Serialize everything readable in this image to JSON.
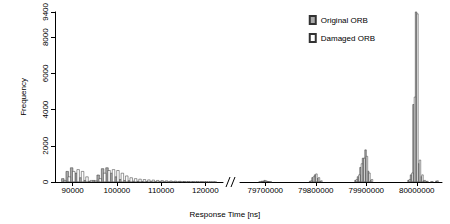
{
  "chart_data": {
    "type": "bar",
    "xlabel": "Response Time [ns]",
    "ylabel": "Frequency",
    "ylim": [
      0,
      9400
    ],
    "yticks": [
      0,
      2000,
      4000,
      6000,
      8000
    ],
    "legend": "upper right",
    "panels": [
      {
        "xlim": [
          86000,
          124000
        ],
        "xticks": [
          90000,
          100000,
          110000,
          120000
        ],
        "x": [
          88000,
          89000,
          90000,
          91000,
          92000,
          93000,
          94000,
          95000,
          96000,
          97000,
          98000,
          99000,
          100000,
          101000,
          102000,
          103000,
          104000,
          105000,
          106000,
          107000,
          108000,
          109000,
          110000,
          111000,
          112000,
          113000,
          114000,
          115000,
          116000,
          117000,
          118000,
          119000,
          120000,
          121000,
          122000
        ],
        "series": [
          {
            "name": "Original ORB",
            "color": "#aaaaaa",
            "values": [
              200,
              600,
              800,
              500,
              250,
              100,
              50,
              100,
              400,
              750,
              800,
              500,
              300,
              150,
              100,
              80,
              60,
              50,
              40,
              40,
              30,
              30,
              25,
              20,
              15,
              15,
              10,
              10,
              10,
              5,
              5,
              5,
              5,
              0,
              0
            ]
          },
          {
            "name": "Damaged ORB",
            "color": "#ffffff",
            "values": [
              100,
              300,
              600,
              700,
              600,
              300,
              100,
              80,
              200,
              500,
              650,
              700,
              650,
              500,
              350,
              250,
              200,
              170,
              150,
              130,
              120,
              100,
              90,
              80,
              70,
              60,
              50,
              40,
              30,
              25,
              20,
              15,
              10,
              5,
              5
            ]
          }
        ]
      },
      {
        "xlim": [
          79650000,
          80050000
        ],
        "xticks": [
          79700000,
          79800000,
          79900000,
          80000000
        ],
        "x": [
          79690000,
          79695000,
          79700000,
          79705000,
          79710000,
          79790000,
          79795000,
          79800000,
          79805000,
          79810000,
          79880000,
          79885000,
          79890000,
          79895000,
          79900000,
          79905000,
          79910000,
          79985000,
          79990000,
          79995000,
          80000000,
          80005000,
          80010000,
          80015000,
          80020000,
          80030000,
          80040000
        ],
        "series": [
          {
            "name": "Original ORB",
            "color": "#aaaaaa",
            "values": [
              20,
              60,
              100,
              50,
              20,
              50,
              250,
              400,
              200,
              50,
              100,
              300,
              800,
              1300,
              1750,
              600,
              100,
              100,
              400,
              4200,
              9200,
              1000,
              300,
              80,
              40,
              20,
              60
            ]
          },
          {
            "name": "Damaged ORB",
            "color": "#ffffff",
            "values": [
              10,
              40,
              80,
              40,
              10,
              80,
              300,
              450,
              250,
              80,
              150,
              400,
              1000,
              1300,
              1400,
              500,
              150,
              150,
              500,
              4600,
              9100,
              1200,
              400,
              100,
              50,
              30,
              80
            ]
          }
        ]
      }
    ]
  }
}
